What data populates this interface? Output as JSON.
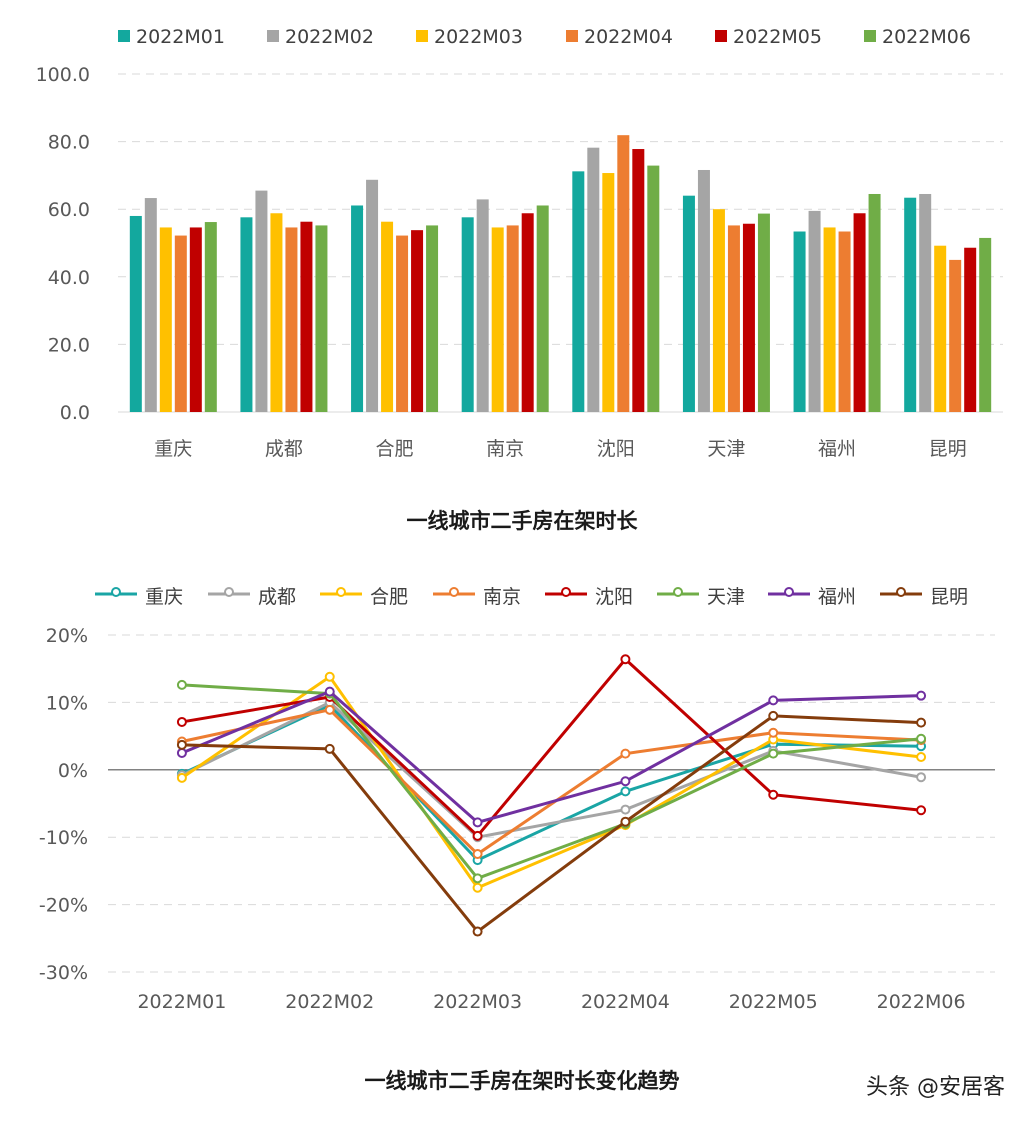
{
  "chart_data": [
    {
      "type": "bar",
      "title": "一线城市二手房在架时长",
      "categories": [
        "重庆",
        "成都",
        "合肥",
        "南京",
        "沈阳",
        "天津",
        "福州",
        "昆明"
      ],
      "ylim": [
        0,
        100
      ],
      "yticks": [
        "0.0",
        "20.0",
        "40.0",
        "60.0",
        "80.0",
        "100.0"
      ],
      "grid": true,
      "legend": "top",
      "series": [
        {
          "name": "2022M01",
          "color": "#13a89e",
          "values": [
            58.0,
            57.6,
            61.1,
            57.6,
            71.2,
            64.0,
            53.4,
            63.4
          ]
        },
        {
          "name": "2022M02",
          "color": "#a5a5a5",
          "values": [
            63.3,
            65.5,
            68.7,
            62.9,
            78.2,
            71.6,
            59.5,
            64.5
          ]
        },
        {
          "name": "2022M03",
          "color": "#ffc000",
          "values": [
            54.6,
            58.8,
            56.3,
            54.6,
            70.7,
            60.0,
            54.6,
            49.2
          ]
        },
        {
          "name": "2022M04",
          "color": "#ed7d31",
          "values": [
            52.2,
            54.6,
            52.2,
            55.2,
            81.9,
            55.2,
            53.4,
            45.0
          ]
        },
        {
          "name": "2022M05",
          "color": "#c00000",
          "values": [
            54.6,
            56.3,
            53.8,
            58.8,
            77.8,
            55.7,
            58.8,
            48.6
          ]
        },
        {
          "name": "2022M06",
          "color": "#70ad47",
          "values": [
            56.2,
            55.2,
            55.2,
            61.1,
            72.9,
            58.7,
            64.5,
            51.5
          ]
        }
      ]
    },
    {
      "type": "line",
      "title": "一线城市二手房在架时长变化趋势",
      "categories": [
        "2022M01",
        "2022M02",
        "2022M03",
        "2022M04",
        "2022M05",
        "2022M06"
      ],
      "ylim": [
        -30,
        20
      ],
      "yticks": [
        "-30%",
        "-20%",
        "-10%",
        "0%",
        "10%",
        "20%"
      ],
      "unit": "%",
      "grid": true,
      "legend": "top",
      "series": [
        {
          "name": "重庆",
          "color": "#1aa5a5",
          "values": [
            -0.6,
            9.6,
            -13.4,
            -3.2,
            3.8,
            3.5
          ]
        },
        {
          "name": "成都",
          "color": "#a5a5a5",
          "values": [
            -0.8,
            10.0,
            -10.0,
            -5.9,
            2.8,
            -1.1
          ]
        },
        {
          "name": "合肥",
          "color": "#ffc000",
          "values": [
            -1.2,
            13.8,
            -17.5,
            -8.2,
            4.5,
            1.9
          ]
        },
        {
          "name": "南京",
          "color": "#ed7d31",
          "values": [
            4.2,
            8.9,
            -12.5,
            2.4,
            5.5,
            4.4
          ]
        },
        {
          "name": "沈阳",
          "color": "#c00000",
          "values": [
            7.1,
            10.8,
            -9.8,
            16.4,
            -3.7,
            -6.0
          ]
        },
        {
          "name": "天津",
          "color": "#70ad47",
          "values": [
            12.6,
            11.3,
            -16.1,
            -8.0,
            2.4,
            4.6
          ]
        },
        {
          "name": "福州",
          "color": "#7030a0",
          "values": [
            2.5,
            11.6,
            -7.8,
            -1.7,
            10.3,
            11.0
          ]
        },
        {
          "name": "昆明",
          "color": "#843c0c",
          "values": [
            3.7,
            3.1,
            -24.0,
            -7.7,
            8.0,
            7.0
          ]
        }
      ]
    }
  ],
  "watermark": "头条 @安居客"
}
